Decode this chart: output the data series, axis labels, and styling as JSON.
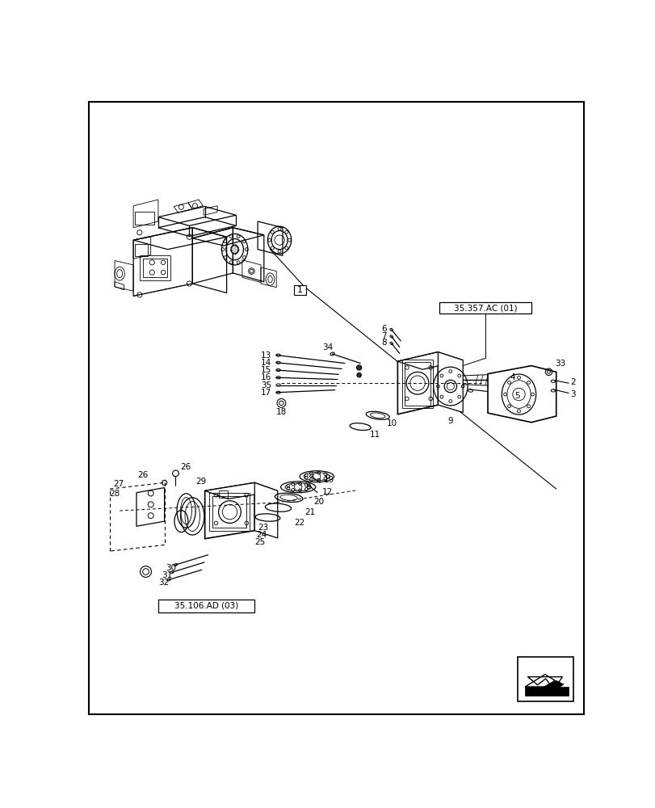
{
  "bg_color": "#ffffff",
  "ref_box1": "35.357.AC (01)",
  "ref_box2": "35.106.AD (03)",
  "fig_width": 8.12,
  "fig_height": 10.0,
  "dpi": 100,
  "lw_main": 0.9,
  "lw_thin": 0.6,
  "lw_thick": 1.2,
  "fs_label": 7.5
}
